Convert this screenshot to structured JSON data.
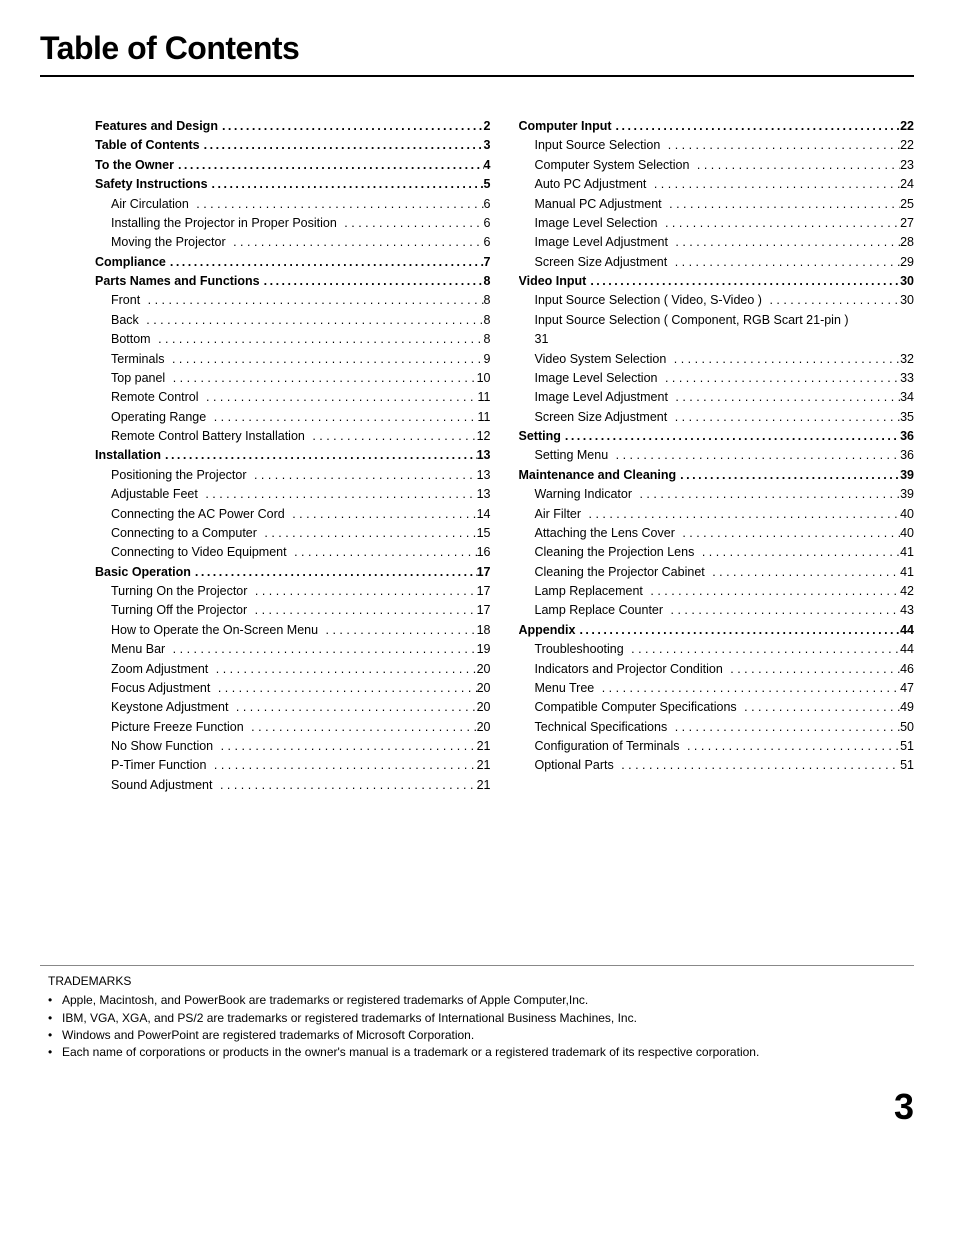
{
  "title": "Table of Contents",
  "page_number": "3",
  "colors": {
    "text": "#000000",
    "background": "#ffffff",
    "rule": "#000000",
    "tm_rule": "#888888"
  },
  "typography": {
    "title_fontsize": 32,
    "body_fontsize": 12.5,
    "tm_fontsize": 12,
    "page_number_fontsize": 36
  },
  "left_sections": [
    {
      "type": "section",
      "label": "Features and Design",
      "page": "2",
      "children": []
    },
    {
      "type": "section",
      "label": "Table of Contents",
      "page": "3",
      "children": []
    },
    {
      "type": "section",
      "label": "To the Owner",
      "page": "4",
      "children": []
    },
    {
      "type": "section",
      "label": "Safety Instructions",
      "page": "5",
      "children": [
        {
          "label": "Air Circulation",
          "page": "6"
        },
        {
          "label": "Installing the Projector in Proper Position",
          "page": "6"
        },
        {
          "label": "Moving the Projector",
          "page": "6"
        }
      ]
    },
    {
      "type": "section",
      "label": "Compliance",
      "page": "7",
      "children": []
    },
    {
      "type": "section",
      "label": "Parts Names and Functions",
      "page": "8",
      "children": [
        {
          "label": "Front",
          "page": "8"
        },
        {
          "label": "Back",
          "page": "8"
        },
        {
          "label": "Bottom",
          "page": "8"
        },
        {
          "label": "Terminals",
          "page": "9"
        },
        {
          "label": "Top panel",
          "page": "10"
        },
        {
          "label": "Remote Control",
          "page": "11"
        },
        {
          "label": "Operating Range",
          "page": "11"
        },
        {
          "label": "Remote Control Battery Installation",
          "page": "12"
        }
      ]
    },
    {
      "type": "section",
      "label": "Installation",
      "page": "13",
      "children": [
        {
          "label": "Positioning the Projector",
          "page": "13"
        },
        {
          "label": "Adjustable Feet",
          "page": "13"
        },
        {
          "label": "Connecting the AC Power Cord",
          "page": "14"
        },
        {
          "label": "Connecting to a Computer",
          "page": "15"
        },
        {
          "label": "Connecting to Video Equipment",
          "page": "16"
        }
      ]
    },
    {
      "type": "section",
      "label": "Basic Operation",
      "page": "17",
      "children": [
        {
          "label": "Turning On the Projector",
          "page": "17"
        },
        {
          "label": "Turning Off the Projector",
          "page": "17"
        },
        {
          "label": "How to Operate the On-Screen Menu",
          "page": "18"
        },
        {
          "label": "Menu Bar",
          "page": "19"
        },
        {
          "label": "Zoom Adjustment",
          "page": "20"
        },
        {
          "label": "Focus Adjustment",
          "page": "20"
        },
        {
          "label": "Keystone Adjustment",
          "page": "20"
        },
        {
          "label": "Picture Freeze Function",
          "page": "20"
        },
        {
          "label": "No Show Function",
          "page": "21"
        },
        {
          "label": "P-Timer Function",
          "page": "21"
        },
        {
          "label": "Sound Adjustment",
          "page": "21"
        }
      ]
    }
  ],
  "right_sections": [
    {
      "type": "section",
      "label": "Computer Input",
      "page": "22",
      "children": [
        {
          "label": "Input Source Selection",
          "page": "22"
        },
        {
          "label": "Computer System Selection",
          "page": "23"
        },
        {
          "label": "Auto PC Adjustment",
          "page": "24"
        },
        {
          "label": "Manual PC Adjustment",
          "page": "25"
        },
        {
          "label": "Image Level Selection",
          "page": "27"
        },
        {
          "label": "Image Level Adjustment",
          "page": "28"
        },
        {
          "label": "Screen Size Adjustment",
          "page": "29"
        }
      ]
    },
    {
      "type": "section",
      "label": "Video Input",
      "page": "30",
      "children": [
        {
          "label": "Input Source Selection ( Video, S-Video )",
          "page": "30"
        },
        {
          "label": "Input Source Selection ( Component, RGB Scart 21-pin )",
          "page": "31",
          "wrap": true
        },
        {
          "label": "Video System Selection",
          "page": "32"
        },
        {
          "label": "Image Level Selection",
          "page": "33"
        },
        {
          "label": "Image Level  Adjustment",
          "page": "34"
        },
        {
          "label": "Screen Size Adjustment",
          "page": "35"
        }
      ]
    },
    {
      "type": "section",
      "label": "Setting",
      "page": "36",
      "children": [
        {
          "label": "Setting Menu",
          "page": "36"
        }
      ]
    },
    {
      "type": "section",
      "label": "Maintenance and Cleaning",
      "page": "39",
      "children": [
        {
          "label": "Warning Indicator",
          "page": "39"
        },
        {
          "label": "Air Filter",
          "page": "40"
        },
        {
          "label": "Attaching the Lens Cover",
          "page": "40"
        },
        {
          "label": "Cleaning the Projection Lens",
          "page": "41"
        },
        {
          "label": "Cleaning the Projector Cabinet",
          "page": "41"
        },
        {
          "label": "Lamp Replacement",
          "page": "42"
        },
        {
          "label": "Lamp Replace Counter",
          "page": "43"
        }
      ]
    },
    {
      "type": "section",
      "label": "Appendix",
      "page": "44",
      "children": [
        {
          "label": "Troubleshooting",
          "page": "44"
        },
        {
          "label": "Indicators and Projector Condition",
          "page": "46"
        },
        {
          "label": "Menu Tree",
          "page": "47"
        },
        {
          "label": "Compatible Computer Specifications",
          "page": "49"
        },
        {
          "label": "Technical Specifications",
          "page": "50"
        },
        {
          "label": "Configuration of Terminals",
          "page": "51"
        },
        {
          "label": "Optional Parts",
          "page": "51"
        }
      ]
    }
  ],
  "trademarks": {
    "heading": "TRADEMARKS",
    "items": [
      "Apple, Macintosh, and PowerBook are trademarks or registered trademarks of Apple Computer,Inc.",
      "IBM, VGA, XGA, and PS/2 are trademarks or registered trademarks of International Business Machines, Inc.",
      "Windows and PowerPoint are registered trademarks of Microsoft Corporation.",
      "Each name of corporations or products in the owner's manual is a trademark or a registered trademark of its respective corporation."
    ]
  }
}
